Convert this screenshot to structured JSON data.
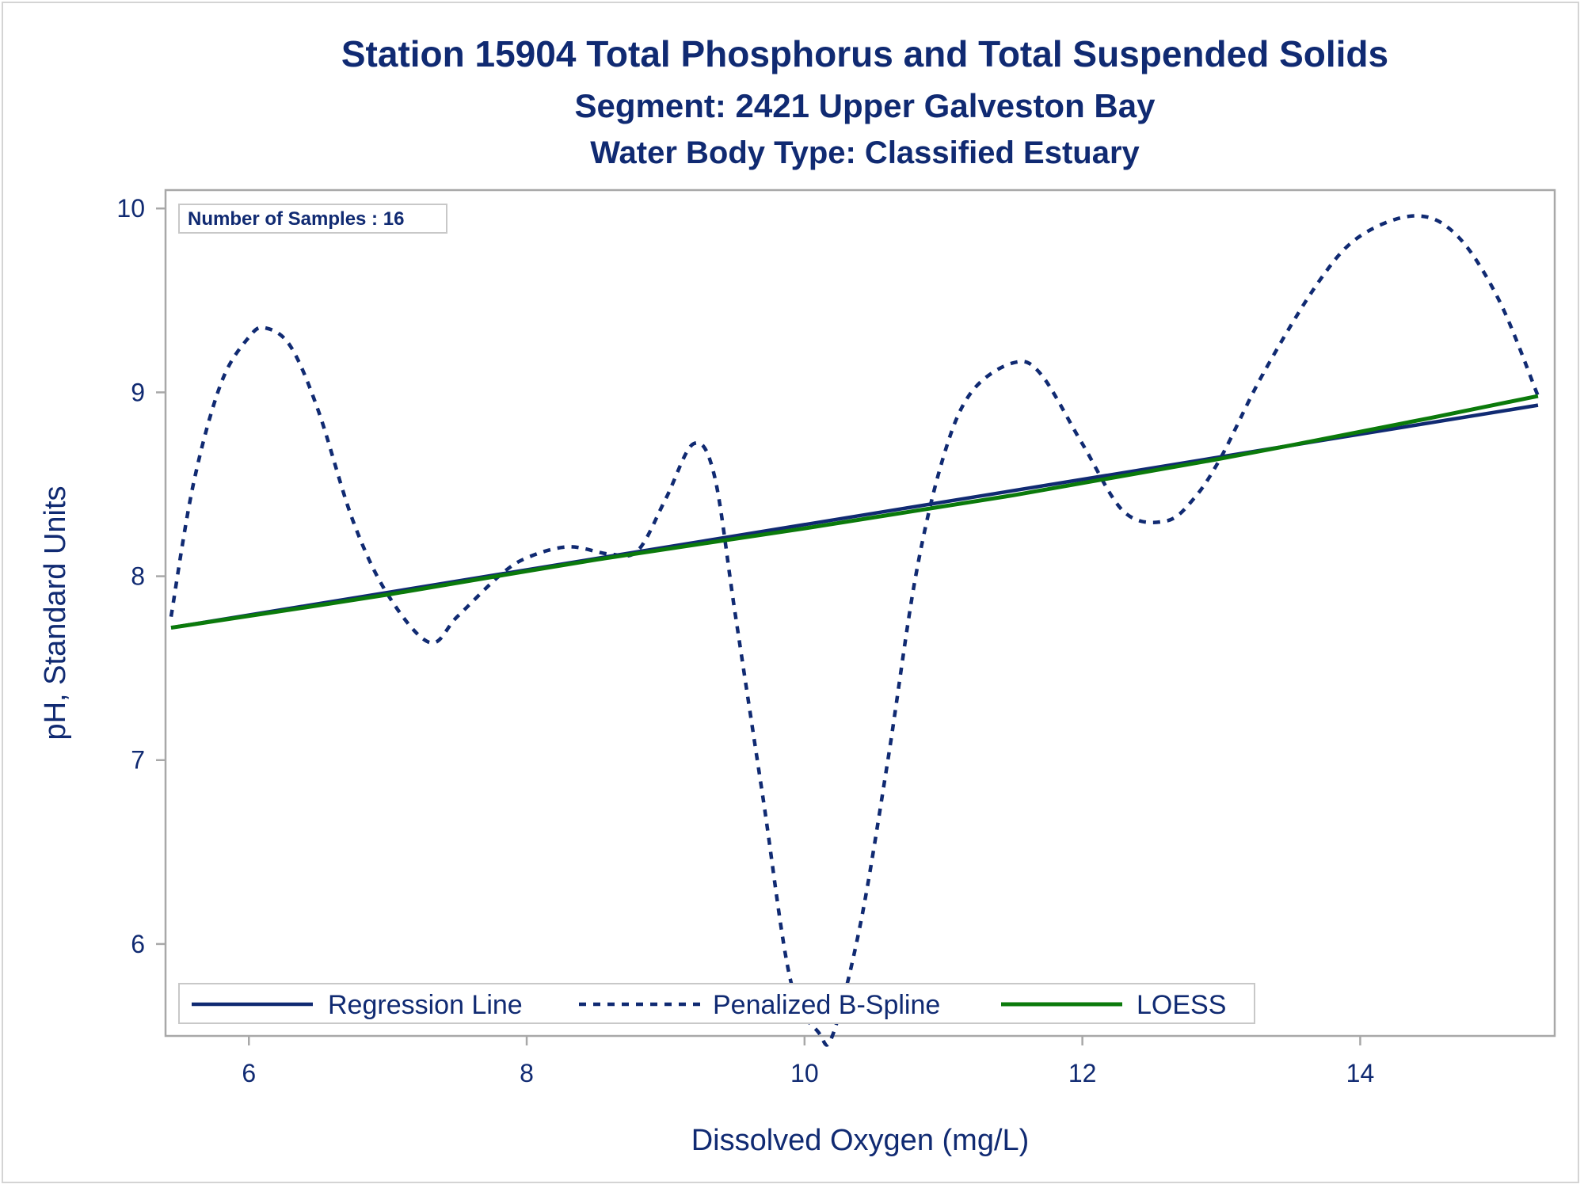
{
  "colors": {
    "regression": "#102a72",
    "spline": "#102a72",
    "loess": "#0b7a0b",
    "text": "#102a72",
    "frame": "#a8a8a8"
  },
  "chart_data": {
    "type": "line",
    "title": "Station 15904  Total Phosphorus and Total Suspended Solids",
    "subtitle": "Segment: 2421  Upper Galveston Bay",
    "subtitle2": "Water Body Type: Classified Estuary",
    "xlabel": "Dissolved Oxygen (mg/L)",
    "ylabel": "pH, Standard Units",
    "xlim": [
      5.4,
      15.4
    ],
    "ylim": [
      5.5,
      10.1
    ],
    "xticks": [
      6,
      8,
      10,
      12,
      14
    ],
    "yticks": [
      6,
      7,
      8,
      9,
      10
    ],
    "grid": false,
    "legend_position": "bottom-inside",
    "inset_text": "Number of Samples : 16",
    "series": [
      {
        "name": "Regression Line",
        "style": "solid",
        "x": [
          5.44,
          15.28
        ],
        "y": [
          7.72,
          8.93
        ]
      },
      {
        "name": "Penalized B-Spline",
        "style": "dashed",
        "x": [
          5.44,
          5.6,
          5.8,
          6.0,
          6.12,
          6.3,
          6.5,
          6.75,
          7.0,
          7.3,
          7.5,
          7.8,
          8.0,
          8.3,
          8.6,
          8.8,
          9.0,
          9.2,
          9.35,
          9.5,
          9.7,
          9.9,
          10.1,
          10.2,
          10.4,
          10.6,
          10.8,
          11.0,
          11.2,
          11.5,
          11.7,
          12.0,
          12.3,
          12.6,
          12.8,
          13.0,
          13.3,
          13.7,
          14.0,
          14.4,
          14.7,
          15.0,
          15.28
        ],
        "y": [
          7.78,
          8.5,
          9.05,
          9.3,
          9.35,
          9.25,
          8.9,
          8.3,
          7.9,
          7.64,
          7.78,
          8.0,
          8.1,
          8.16,
          8.12,
          8.14,
          8.42,
          8.72,
          8.55,
          7.8,
          6.8,
          5.8,
          5.52,
          5.5,
          6.1,
          7.0,
          8.0,
          8.65,
          9.0,
          9.16,
          9.1,
          8.72,
          8.35,
          8.3,
          8.42,
          8.65,
          9.1,
          9.6,
          9.85,
          9.96,
          9.85,
          9.5,
          8.98
        ]
      },
      {
        "name": "LOESS",
        "style": "solid",
        "x": [
          5.44,
          7.0,
          8.5,
          10.0,
          11.5,
          13.0,
          14.5,
          15.28
        ],
        "y": [
          7.72,
          7.9,
          8.09,
          8.26,
          8.44,
          8.64,
          8.86,
          8.98
        ]
      }
    ]
  }
}
